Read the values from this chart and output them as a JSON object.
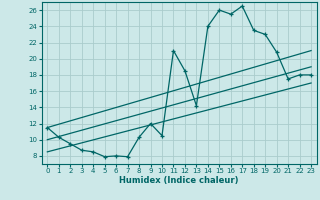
{
  "xlabel": "Humidex (Indice chaleur)",
  "bg_color": "#cce8e8",
  "grid_color": "#aacccc",
  "line_color": "#006666",
  "xlim": [
    -0.5,
    23.5
  ],
  "ylim": [
    7,
    27
  ],
  "yticks": [
    8,
    10,
    12,
    14,
    16,
    18,
    20,
    22,
    24,
    26
  ],
  "xticks": [
    0,
    1,
    2,
    3,
    4,
    5,
    6,
    7,
    8,
    9,
    10,
    11,
    12,
    13,
    14,
    15,
    16,
    17,
    18,
    19,
    20,
    21,
    22,
    23
  ],
  "data_x": [
    0,
    1,
    2,
    3,
    4,
    5,
    6,
    7,
    8,
    9,
    10,
    11,
    12,
    13,
    14,
    15,
    16,
    17,
    18,
    19,
    20,
    21,
    22,
    23
  ],
  "data_y": [
    11.5,
    10.3,
    9.5,
    8.7,
    8.5,
    7.9,
    8.0,
    7.9,
    10.3,
    12.0,
    10.5,
    21.0,
    18.5,
    14.2,
    24.0,
    26.0,
    25.5,
    26.5,
    23.5,
    23.0,
    20.8,
    17.5,
    18.0,
    18.0
  ],
  "line1_x": [
    0,
    23
  ],
  "line1_y": [
    11.5,
    21.0
  ],
  "line2_x": [
    0,
    23
  ],
  "line2_y": [
    10.0,
    19.0
  ],
  "line3_x": [
    0,
    23
  ],
  "line3_y": [
    8.5,
    17.0
  ]
}
